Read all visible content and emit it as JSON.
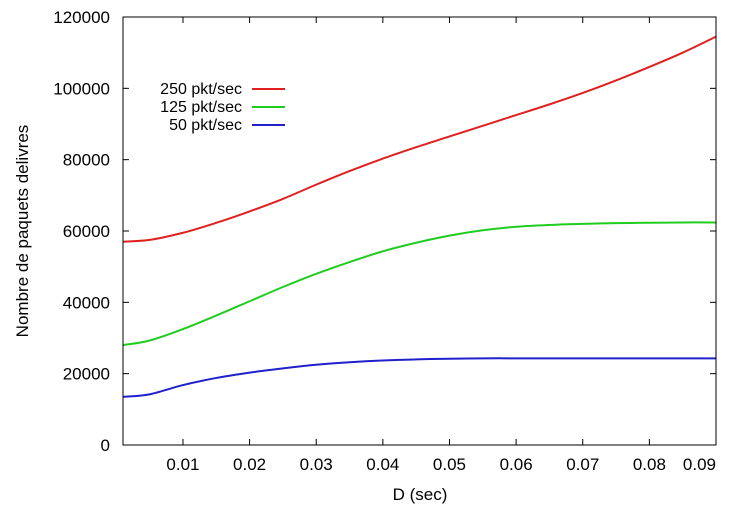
{
  "chart_data": {
    "type": "line",
    "title": "",
    "xlabel": "D (sec)",
    "ylabel": "Nombre de paquets delivres",
    "xlim": [
      0.001,
      0.09
    ],
    "ylim": [
      0,
      120000
    ],
    "x_ticks": [
      0.01,
      0.02,
      0.03,
      0.04,
      0.05,
      0.06,
      0.07,
      0.08,
      0.09
    ],
    "x_tick_labels": [
      "0.01",
      "0.02",
      "0.03",
      "0.04",
      "0.05",
      "0.06",
      "0.07",
      "0.08",
      "0.09"
    ],
    "y_ticks": [
      0,
      20000,
      40000,
      60000,
      80000,
      100000,
      120000
    ],
    "y_tick_labels": [
      "0",
      "20000",
      "40000",
      "60000",
      "80000",
      "100000",
      "120000"
    ],
    "grid": false,
    "legend_position": "top-left",
    "series": [
      {
        "name": "250 pkt/sec",
        "color": "#e02020",
        "x": [
          0.001,
          0.005,
          0.01,
          0.015,
          0.02,
          0.025,
          0.03,
          0.035,
          0.04,
          0.045,
          0.05,
          0.055,
          0.06,
          0.065,
          0.07,
          0.075,
          0.08,
          0.085,
          0.09
        ],
        "y": [
          57000,
          57500,
          59500,
          62300,
          65500,
          69000,
          73000,
          76800,
          80300,
          83500,
          86500,
          89500,
          92500,
          95500,
          98700,
          102200,
          106000,
          110000,
          114500
        ]
      },
      {
        "name": "125 pkt/sec",
        "color": "#20cc20",
        "x": [
          0.001,
          0.005,
          0.01,
          0.015,
          0.02,
          0.025,
          0.03,
          0.035,
          0.04,
          0.045,
          0.05,
          0.055,
          0.06,
          0.065,
          0.07,
          0.075,
          0.08,
          0.085,
          0.09
        ],
        "y": [
          28000,
          29300,
          32500,
          36300,
          40300,
          44300,
          48000,
          51300,
          54300,
          56700,
          58700,
          60200,
          61200,
          61700,
          62000,
          62200,
          62300,
          62400,
          62400
        ]
      },
      {
        "name": "50 pkt/sec",
        "color": "#2020cc",
        "x": [
          0.001,
          0.005,
          0.01,
          0.015,
          0.02,
          0.025,
          0.03,
          0.035,
          0.04,
          0.045,
          0.05,
          0.055,
          0.06,
          0.065,
          0.07,
          0.075,
          0.08,
          0.085,
          0.09
        ],
        "y": [
          13500,
          14200,
          16800,
          18800,
          20300,
          21500,
          22500,
          23200,
          23700,
          24000,
          24200,
          24300,
          24300,
          24300,
          24300,
          24300,
          24300,
          24300,
          24300
        ]
      }
    ]
  }
}
